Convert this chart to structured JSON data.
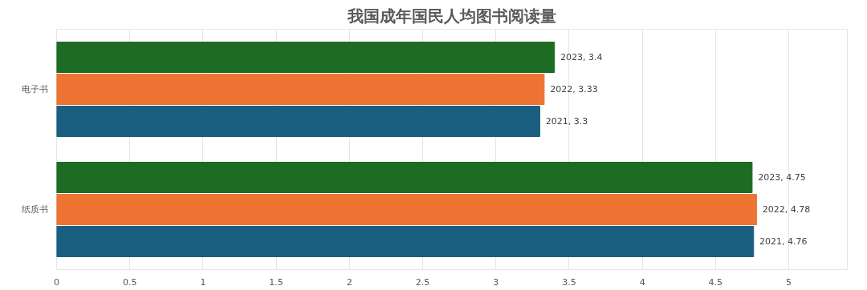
{
  "chart_data": {
    "type": "bar",
    "orientation": "horizontal",
    "title": "我国成年国民人均图书阅读量",
    "categories": [
      "电子书",
      "纸质书"
    ],
    "series": [
      {
        "color": "#1a5f80",
        "values": [
          3.3,
          4.76
        ],
        "value_labels": [
          "2021, 3.3",
          "2021, 4.76"
        ]
      },
      {
        "color": "#ed7433",
        "values": [
          3.33,
          4.78
        ],
        "value_labels": [
          "2022, 3.33",
          "2022, 4.78"
        ]
      },
      {
        "color": "#1e6b23",
        "values": [
          3.4,
          4.75
        ],
        "value_labels": [
          "2023, 3.4",
          "2023, 4.75"
        ]
      }
    ],
    "xlim": [
      0,
      5.4
    ],
    "xticks": [
      0,
      0.5,
      1,
      1.5,
      2,
      2.5,
      3,
      3.5,
      4,
      4.5,
      5
    ],
    "grid": "x"
  }
}
